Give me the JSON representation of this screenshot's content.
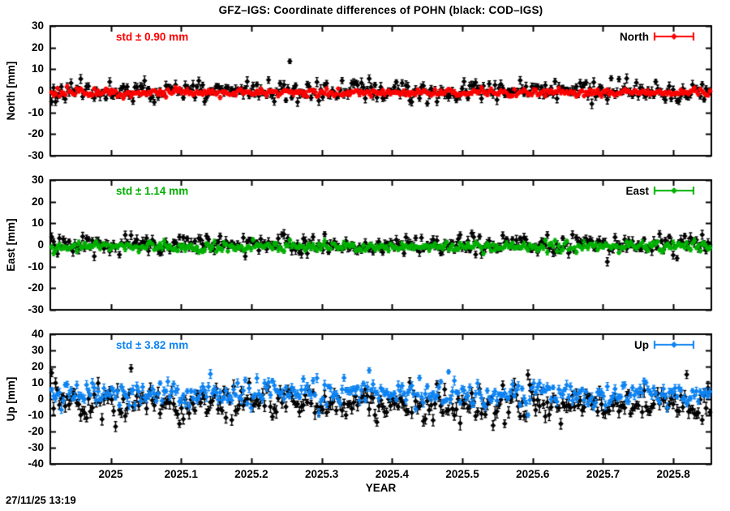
{
  "title": "GFZ–IGS: Coordinate differences of POHN (black: COD–IGS)",
  "timestamp": "27/11/25 13:19",
  "colors": {
    "north": "#ff0000",
    "east": "#00b000",
    "up": "#0d83f2",
    "reference_black": "#000000",
    "frame": "#000000",
    "background": "#ffffff"
  },
  "x_axis": {
    "label": "YEAR",
    "range": [
      2024.914,
      2025.854
    ],
    "ticks": [
      2025.0,
      2025.1,
      2025.2,
      2025.3,
      2025.4,
      2025.5,
      2025.6,
      2025.7,
      2025.8
    ],
    "tick_labels": [
      "2025",
      "2025.1",
      "2025.2",
      "2025.3",
      "2025.4",
      "2025.5",
      "2025.6",
      "2025.7",
      "2025.8"
    ]
  },
  "chart_data": [
    {
      "type": "scatter",
      "panel": "North",
      "ylabel": "North [mm]",
      "ylim": [
        -30,
        30
      ],
      "yticks": [
        -30,
        -20,
        -10,
        0,
        10,
        20,
        30
      ],
      "ytick_labels": [
        "-30",
        "-20",
        "-10",
        "0",
        "10",
        "20",
        "30"
      ],
      "std_label": "std ± 0.90 mm",
      "std_mm": 0.9,
      "legend": {
        "label": "North",
        "color": "#ff0000"
      },
      "x_start": 2024.916,
      "x_end": 2025.852,
      "n_points": 341,
      "series": [
        {
          "name": "COD–IGS",
          "color": "#000000",
          "mean": 0.0,
          "std": 2.3,
          "errorbar": 1.6,
          "seed": 11
        },
        {
          "name": "GFZ–IGS",
          "color": "#ff0000",
          "mean": -0.8,
          "std": 0.9,
          "errorbar": 0.8,
          "seed": 22
        }
      ]
    },
    {
      "type": "scatter",
      "panel": "East",
      "ylabel": "East [mm]",
      "ylim": [
        -30,
        30
      ],
      "yticks": [
        -30,
        -20,
        -10,
        0,
        10,
        20,
        30
      ],
      "ytick_labels": [
        "-30",
        "-20",
        "-10",
        "0",
        "10",
        "20",
        "30"
      ],
      "std_label": "std ± 1.14 mm",
      "std_mm": 1.14,
      "legend": {
        "label": "East",
        "color": "#00b000"
      },
      "x_start": 2024.916,
      "x_end": 2025.852,
      "n_points": 341,
      "series": [
        {
          "name": "COD–IGS",
          "color": "#000000",
          "mean": 0.0,
          "std": 2.2,
          "errorbar": 1.6,
          "seed": 55
        },
        {
          "name": "GFZ–IGS",
          "color": "#00b000",
          "mean": -0.8,
          "std": 1.14,
          "errorbar": 0.9,
          "seed": 33
        }
      ]
    },
    {
      "type": "scatter",
      "panel": "Up",
      "ylabel": "Up [mm]",
      "ylim": [
        -40,
        40
      ],
      "yticks": [
        -40,
        -30,
        -20,
        -10,
        0,
        10,
        20,
        30,
        40
      ],
      "ytick_labels": [
        "-40",
        "-30",
        "-20",
        "-10",
        "0",
        "10",
        "20",
        "30",
        "40"
      ],
      "std_label": "std ± 3.82 mm",
      "std_mm": 3.82,
      "legend": {
        "label": "Up",
        "color": "#0d83f2"
      },
      "x_start": 2024.916,
      "x_end": 2025.852,
      "n_points": 341,
      "series": [
        {
          "name": "COD–IGS",
          "color": "#000000",
          "mean": -2.5,
          "std": 5.0,
          "errorbar": 3.0,
          "seed": 66
        },
        {
          "name": "GFZ–IGS",
          "color": "#0d83f2",
          "mean": 3.5,
          "std": 3.82,
          "errorbar": 2.0,
          "seed": 44
        }
      ]
    }
  ]
}
